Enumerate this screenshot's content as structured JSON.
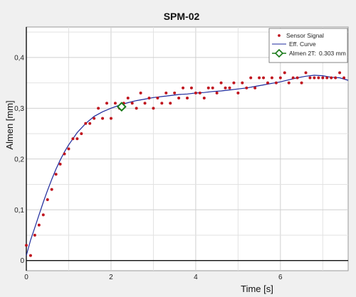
{
  "chart_data": {
    "type": "scatter",
    "title": "SPM-02",
    "xlabel": "Time [s]",
    "ylabel": "Almen [mm]",
    "xlim": [
      0,
      7.6
    ],
    "ylim": [
      -0.02,
      0.46
    ],
    "x_ticks": [
      0,
      2,
      4,
      6
    ],
    "x_tick_labels": [
      "0",
      "2",
      "4",
      "6"
    ],
    "y_ticks": [
      0,
      0.1,
      0.2,
      0.3,
      0.4
    ],
    "y_tick_labels": [
      "0",
      "0,1",
      "0,2",
      "0,3",
      "0,4"
    ],
    "grid": true,
    "legend_position": "top-right",
    "series": [
      {
        "name": "Sensor Signal",
        "kind": "scatter",
        "color": "#c0141e",
        "x": [
          0.0,
          0.1,
          0.2,
          0.3,
          0.4,
          0.5,
          0.6,
          0.7,
          0.8,
          0.9,
          1.0,
          1.1,
          1.2,
          1.3,
          1.4,
          1.5,
          1.6,
          1.7,
          1.8,
          1.9,
          2.0,
          2.1,
          2.2,
          2.3,
          2.4,
          2.5,
          2.6,
          2.7,
          2.8,
          2.9,
          3.0,
          3.1,
          3.2,
          3.3,
          3.4,
          3.5,
          3.6,
          3.7,
          3.8,
          3.9,
          4.0,
          4.1,
          4.2,
          4.3,
          4.4,
          4.5,
          4.6,
          4.7,
          4.8,
          4.9,
          5.0,
          5.1,
          5.2,
          5.3,
          5.4,
          5.5,
          5.6,
          5.7,
          5.8,
          5.9,
          6.0,
          6.1,
          6.2,
          6.3,
          6.4,
          6.5,
          6.6,
          6.7,
          6.8,
          6.9,
          7.0,
          7.1,
          7.2,
          7.3,
          7.4,
          7.5
        ],
        "y": [
          0.03,
          0.01,
          0.05,
          0.07,
          0.09,
          0.12,
          0.14,
          0.17,
          0.19,
          0.21,
          0.22,
          0.24,
          0.24,
          0.25,
          0.27,
          0.27,
          0.28,
          0.3,
          0.28,
          0.31,
          0.28,
          0.31,
          0.3,
          0.31,
          0.32,
          0.31,
          0.3,
          0.33,
          0.31,
          0.32,
          0.3,
          0.32,
          0.31,
          0.33,
          0.31,
          0.33,
          0.32,
          0.34,
          0.32,
          0.34,
          0.33,
          0.33,
          0.32,
          0.34,
          0.34,
          0.33,
          0.35,
          0.34,
          0.34,
          0.35,
          0.33,
          0.35,
          0.34,
          0.36,
          0.34,
          0.36,
          0.36,
          0.35,
          0.36,
          0.35,
          0.36,
          0.37,
          0.35,
          0.36,
          0.36,
          0.35,
          0.37,
          0.36,
          0.36,
          0.36,
          0.36,
          0.36,
          0.36,
          0.36,
          0.37,
          0.36
        ]
      },
      {
        "name": "Eff. Curve",
        "kind": "line",
        "color": "#1e2a9c",
        "x": [
          0.0,
          0.1,
          0.2,
          0.3,
          0.4,
          0.5,
          0.6,
          0.7,
          0.8,
          0.9,
          1.0,
          1.2,
          1.4,
          1.6,
          1.8,
          2.0,
          2.2,
          2.4,
          2.6,
          2.8,
          3.0,
          3.2,
          3.4,
          3.6,
          3.8,
          4.0,
          4.2,
          4.4,
          4.6,
          4.8,
          5.0,
          5.2,
          5.4,
          5.6,
          5.8,
          6.0,
          6.2,
          6.4,
          6.6,
          6.8,
          7.0,
          7.2,
          7.4,
          7.6
        ],
        "y": [
          0.01,
          0.04,
          0.065,
          0.09,
          0.115,
          0.138,
          0.16,
          0.18,
          0.198,
          0.214,
          0.228,
          0.252,
          0.27,
          0.284,
          0.293,
          0.3,
          0.306,
          0.311,
          0.315,
          0.318,
          0.321,
          0.323,
          0.325,
          0.327,
          0.328,
          0.33,
          0.331,
          0.333,
          0.334,
          0.336,
          0.338,
          0.34,
          0.343,
          0.346,
          0.349,
          0.352,
          0.356,
          0.36,
          0.363,
          0.365,
          0.364,
          0.361,
          0.36,
          0.355
        ]
      },
      {
        "name": "Almen 2T:",
        "kind": "marker",
        "color": "#1a7a1a",
        "x": [
          2.25
        ],
        "y": [
          0.303
        ],
        "value_label": "0.303 mm"
      }
    ]
  }
}
